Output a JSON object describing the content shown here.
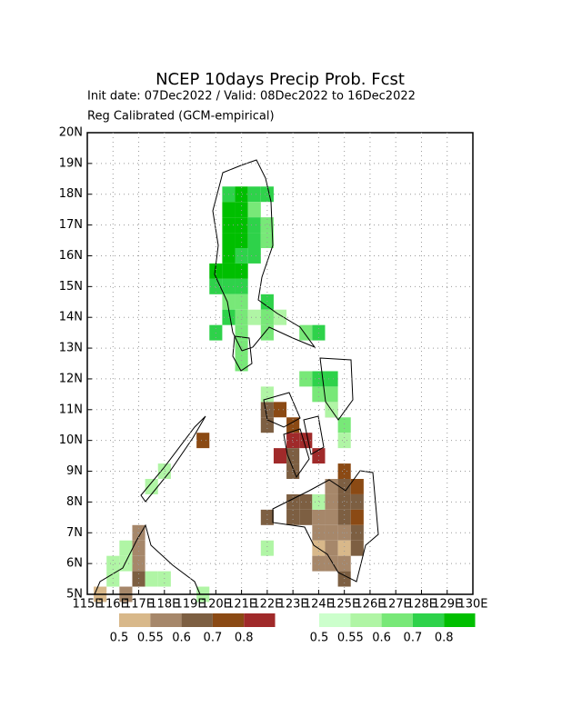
{
  "chart_data": {
    "type": "grid-map",
    "title": "NCEP 10days Precip Prob. Fcst",
    "subtitle": "Init date: 07Dec2022 / Valid: 08Dec2022 to 16Dec2022",
    "subtitle2": "Reg Calibrated (GCM-empirical)",
    "xlim": [
      115,
      130
    ],
    "ylim": [
      5,
      20
    ],
    "xticks": [
      {
        "value": 115,
        "label": "115E"
      },
      {
        "value": 116,
        "label": "116E"
      },
      {
        "value": 117,
        "label": "117E"
      },
      {
        "value": 118,
        "label": "118E"
      },
      {
        "value": 119,
        "label": "119E"
      },
      {
        "value": 120,
        "label": "120E"
      },
      {
        "value": 121,
        "label": "121E"
      },
      {
        "value": 122,
        "label": "122E"
      },
      {
        "value": 123,
        "label": "123E"
      },
      {
        "value": 124,
        "label": "124E"
      },
      {
        "value": 125,
        "label": "125E"
      },
      {
        "value": 126,
        "label": "126E"
      },
      {
        "value": 127,
        "label": "127E"
      },
      {
        "value": 128,
        "label": "128E"
      },
      {
        "value": 129,
        "label": "129E"
      },
      {
        "value": 130,
        "label": "130E"
      }
    ],
    "yticks": [
      {
        "value": 5,
        "label": "5N"
      },
      {
        "value": 6,
        "label": "6N"
      },
      {
        "value": 7,
        "label": "7N"
      },
      {
        "value": 8,
        "label": "8N"
      },
      {
        "value": 9,
        "label": "9N"
      },
      {
        "value": 10,
        "label": "10N"
      },
      {
        "value": 11,
        "label": "11N"
      },
      {
        "value": 12,
        "label": "12N"
      },
      {
        "value": 13,
        "label": "13N"
      },
      {
        "value": 14,
        "label": "14N"
      },
      {
        "value": 15,
        "label": "15N"
      },
      {
        "value": 16,
        "label": "16N"
      },
      {
        "value": 17,
        "label": "17N"
      },
      {
        "value": 18,
        "label": "18N"
      },
      {
        "value": 19,
        "label": "19N"
      },
      {
        "value": 20,
        "label": "20N"
      }
    ],
    "grid": true,
    "cell_size": 0.5,
    "series": [
      {
        "colors": [
          "#d8b88a",
          "#a6876a",
          "#7d5f42",
          "#8b4a14",
          "#a02a2a"
        ],
        "levels": [
          0.5,
          0.55,
          0.6,
          0.7,
          0.8
        ],
        "cells": [
          [
            119.5,
            10,
            0.7
          ],
          [
            122,
            11,
            0.6
          ],
          [
            122.5,
            11,
            0.7
          ],
          [
            122,
            10.5,
            0.6
          ],
          [
            123,
            10.5,
            0.7
          ],
          [
            123,
            10,
            0.8
          ],
          [
            123.5,
            10,
            0.8
          ],
          [
            122.5,
            9.5,
            0.8
          ],
          [
            123,
            9.5,
            0.6
          ],
          [
            124,
            9.5,
            0.8
          ],
          [
            123,
            9,
            0.6
          ],
          [
            125,
            9,
            0.7
          ],
          [
            124.5,
            8.5,
            0.55
          ],
          [
            125,
            8.5,
            0.6
          ],
          [
            125.5,
            8.5,
            0.7
          ],
          [
            123,
            8,
            0.6
          ],
          [
            123.5,
            8,
            0.6
          ],
          [
            124.5,
            8,
            0.55
          ],
          [
            125,
            8,
            0.6
          ],
          [
            125.5,
            8,
            0.6
          ],
          [
            122,
            7.5,
            0.6
          ],
          [
            123,
            7.5,
            0.6
          ],
          [
            123.5,
            7.5,
            0.6
          ],
          [
            124,
            7.5,
            0.55
          ],
          [
            124.5,
            7.5,
            0.55
          ],
          [
            125,
            7.5,
            0.6
          ],
          [
            125.5,
            7.5,
            0.7
          ],
          [
            124,
            7,
            0.55
          ],
          [
            124.5,
            7,
            0.55
          ],
          [
            125,
            7,
            0.55
          ],
          [
            125.5,
            7,
            0.6
          ],
          [
            124,
            6.5,
            0.5
          ],
          [
            124.5,
            6.5,
            0.55
          ],
          [
            125,
            6.5,
            0.5
          ],
          [
            125.5,
            6.5,
            0.6
          ],
          [
            124,
            6,
            0.55
          ],
          [
            124.5,
            6,
            0.55
          ],
          [
            125,
            6,
            0.55
          ],
          [
            125,
            5.5,
            0.6
          ],
          [
            124.5,
            11,
            0.55
          ],
          [
            117,
            7,
            0.55
          ],
          [
            117,
            6.5,
            0.55
          ],
          [
            117,
            6,
            0.55
          ],
          [
            117,
            5.5,
            0.6
          ],
          [
            116.5,
            5,
            0.55
          ],
          [
            115.5,
            5,
            0.5
          ]
        ]
      },
      {
        "colors": [
          "#ccffcc",
          "#b0f5a5",
          "#78e878",
          "#2ed24a",
          "#00bf00"
        ],
        "levels": [
          0.5,
          0.55,
          0.6,
          0.7,
          0.8
        ],
        "cells": [
          [
            120.5,
            18,
            0.7
          ],
          [
            121,
            18,
            0.8
          ],
          [
            121.5,
            18,
            0.7
          ],
          [
            122,
            18,
            0.7
          ],
          [
            120.5,
            17.5,
            0.8
          ],
          [
            121,
            17.5,
            0.8
          ],
          [
            121.5,
            17.5,
            0.6
          ],
          [
            120.5,
            17,
            0.8
          ],
          [
            121,
            17,
            0.8
          ],
          [
            121.5,
            17,
            0.7
          ],
          [
            122,
            17,
            0.6
          ],
          [
            120.5,
            16.5,
            0.8
          ],
          [
            121,
            16.5,
            0.8
          ],
          [
            121.5,
            16.5,
            0.7
          ],
          [
            122,
            16.5,
            0.6
          ],
          [
            120.5,
            16,
            0.8
          ],
          [
            121,
            16,
            0.7
          ],
          [
            121.5,
            16,
            0.7
          ],
          [
            120,
            15.5,
            0.8
          ],
          [
            120.5,
            15.5,
            0.8
          ],
          [
            121,
            15.5,
            0.8
          ],
          [
            120,
            15,
            0.7
          ],
          [
            120.5,
            15,
            0.7
          ],
          [
            121,
            15,
            0.7
          ],
          [
            120.5,
            14.5,
            0.6
          ],
          [
            121,
            14.5,
            0.6
          ],
          [
            122,
            14.5,
            0.7
          ],
          [
            120.5,
            14,
            0.7
          ],
          [
            121,
            14,
            0.6
          ],
          [
            121.5,
            14,
            0.55
          ],
          [
            122,
            14,
            0.6
          ],
          [
            122.5,
            14,
            0.55
          ],
          [
            120,
            13.5,
            0.7
          ],
          [
            121,
            13.5,
            0.6
          ],
          [
            122,
            13.5,
            0.6
          ],
          [
            123.5,
            13.5,
            0.6
          ],
          [
            124,
            13.5,
            0.7
          ],
          [
            121,
            13,
            0.6
          ],
          [
            121,
            12.5,
            0.6
          ],
          [
            123.5,
            12,
            0.6
          ],
          [
            124,
            12,
            0.7
          ],
          [
            124.5,
            12,
            0.7
          ],
          [
            124,
            11.5,
            0.6
          ],
          [
            124.5,
            11.5,
            0.6
          ],
          [
            124.5,
            11,
            0.55
          ],
          [
            122,
            11.5,
            0.55
          ],
          [
            125,
            10.5,
            0.6
          ],
          [
            125,
            10,
            0.55
          ],
          [
            118,
            9,
            0.55
          ],
          [
            117.5,
            8.5,
            0.55
          ],
          [
            116.5,
            6.5,
            0.55
          ],
          [
            116.5,
            6,
            0.55
          ],
          [
            116,
            6,
            0.55
          ],
          [
            116,
            5.5,
            0.55
          ],
          [
            117.5,
            5.5,
            0.55
          ],
          [
            118,
            5.5,
            0.55
          ],
          [
            119.5,
            5,
            0.55
          ],
          [
            124,
            8,
            0.55
          ],
          [
            122,
            6.5,
            0.55
          ]
        ]
      }
    ]
  }
}
